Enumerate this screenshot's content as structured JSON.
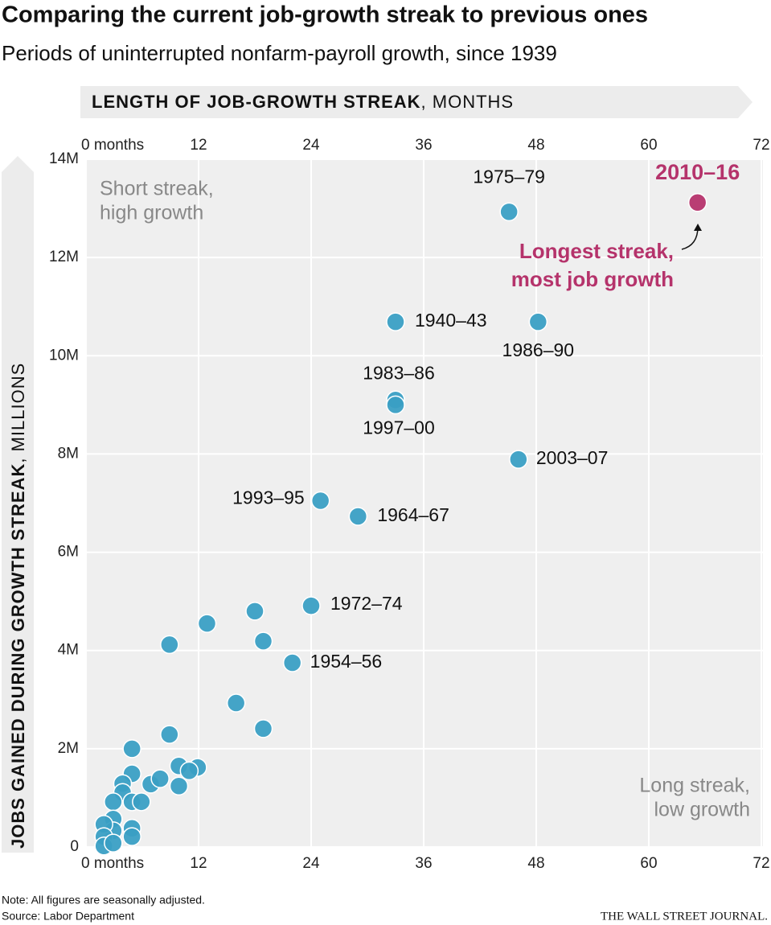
{
  "title": "Comparing the current job-growth streak to previous ones",
  "subtitle": "Periods of uninterrupted nonfarm-payroll growth, since 1939",
  "note": "Note: All figures are seasonally adjusted.",
  "source": "Source: Labor Department",
  "brand": "THE WALL STREET JOURNAL.",
  "chart_data": {
    "type": "scatter",
    "x_label": {
      "bold": "LENGTH OF JOB-GROWTH STREAK",
      "normal": ", MONTHS"
    },
    "y_label": {
      "bold": "JOBS GAINED DURING GROWTH STREAK",
      "normal": ", MILLIONS"
    },
    "xlim": [
      0,
      72
    ],
    "xticks": [
      {
        "value": 0,
        "label": "0 months"
      },
      12,
      24,
      36,
      48,
      60,
      72
    ],
    "ylim": [
      0,
      14
    ],
    "yticks": [
      0,
      {
        "value": 2,
        "label": "2M"
      },
      {
        "value": 4,
        "label": "4M"
      },
      {
        "value": 6,
        "label": "6M"
      },
      {
        "value": 8,
        "label": "8M"
      },
      {
        "value": 10,
        "label": "10M"
      },
      {
        "value": 12,
        "label": "12M"
      },
      {
        "value": 14,
        "label": "14M"
      }
    ],
    "grid": true,
    "x": [
      45.1,
      65.2,
      33.0,
      48.2,
      33.0,
      33.0,
      46.1,
      25.0,
      29.0,
      24.0,
      22.0,
      12.9,
      18.0,
      18.9,
      8.9,
      16.0,
      18.9,
      8.9,
      4.9,
      4.9,
      11.9,
      9.9,
      11.0,
      6.9,
      7.9,
      9.9,
      3.9,
      3.9,
      2.9,
      4.9,
      5.9,
      2.9,
      2.9,
      4.9,
      4.9,
      1.9,
      1.9,
      1.9,
      2.9
    ],
    "values": [
      12.93,
      13.12,
      10.69,
      10.69,
      9.1,
      9.0,
      7.89,
      7.05,
      6.73,
      4.91,
      3.75,
      4.55,
      4.8,
      4.19,
      4.12,
      2.93,
      2.41,
      2.29,
      2.0,
      1.49,
      1.62,
      1.65,
      1.55,
      1.28,
      1.39,
      1.24,
      1.29,
      1.11,
      0.92,
      0.92,
      0.92,
      0.57,
      0.33,
      0.38,
      0.21,
      0.46,
      0.21,
      0.02,
      0.08
    ],
    "labels": [
      "1975–79",
      "2010–16",
      "1940–43",
      "1986–90",
      "1983–86",
      "1997–00",
      "2003–07",
      "1993–95",
      "1964–67",
      "1972–74",
      "1954–56",
      null,
      null,
      null,
      null,
      null,
      null,
      null,
      null,
      null,
      null,
      null,
      null,
      null,
      null,
      null,
      null,
      null,
      null,
      null,
      null,
      null,
      null,
      null,
      null,
      null,
      null,
      null,
      null
    ],
    "color": "#3a9fc4",
    "highlight_color": "#b5336b",
    "point_colors": [
      "#3a9fc4",
      "#b5336b",
      "#3a9fc4",
      "#3a9fc4",
      "#3a9fc4",
      "#3a9fc4",
      "#3a9fc4",
      "#3a9fc4",
      "#3a9fc4",
      "#3a9fc4",
      "#3a9fc4",
      "#3a9fc4",
      "#3a9fc4",
      "#3a9fc4",
      "#3a9fc4",
      "#3a9fc4",
      "#3a9fc4",
      "#3a9fc4",
      "#3a9fc4",
      "#3a9fc4",
      "#3a9fc4",
      "#3a9fc4",
      "#3a9fc4",
      "#3a9fc4",
      "#3a9fc4",
      "#3a9fc4",
      "#3a9fc4",
      "#3a9fc4",
      "#3a9fc4",
      "#3a9fc4",
      "#3a9fc4",
      "#3a9fc4",
      "#3a9fc4",
      "#3a9fc4",
      "#3a9fc4",
      "#3a9fc4",
      "#3a9fc4",
      "#3a9fc4",
      "#3a9fc4"
    ],
    "annotations": {
      "top_left": [
        "Short streak,",
        "high growth"
      ],
      "bottom_right": [
        "Long streak,",
        "low growth"
      ],
      "highlight": [
        "Longest streak,",
        "most job growth"
      ]
    }
  }
}
